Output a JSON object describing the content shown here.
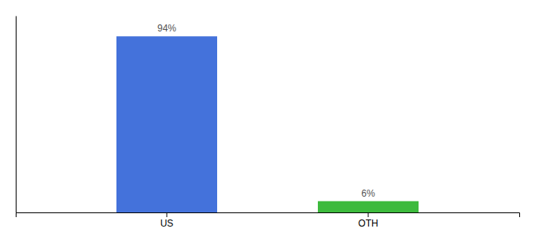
{
  "chart_data": {
    "type": "bar",
    "categories": [
      "US",
      "OTH"
    ],
    "values": [
      94,
      6
    ],
    "colors": [
      "#4472db",
      "#3dba3d"
    ],
    "value_labels": [
      "94%",
      "6%"
    ],
    "data_labels": true,
    "ylim": [
      0,
      105
    ],
    "tick_labels": "x"
  }
}
